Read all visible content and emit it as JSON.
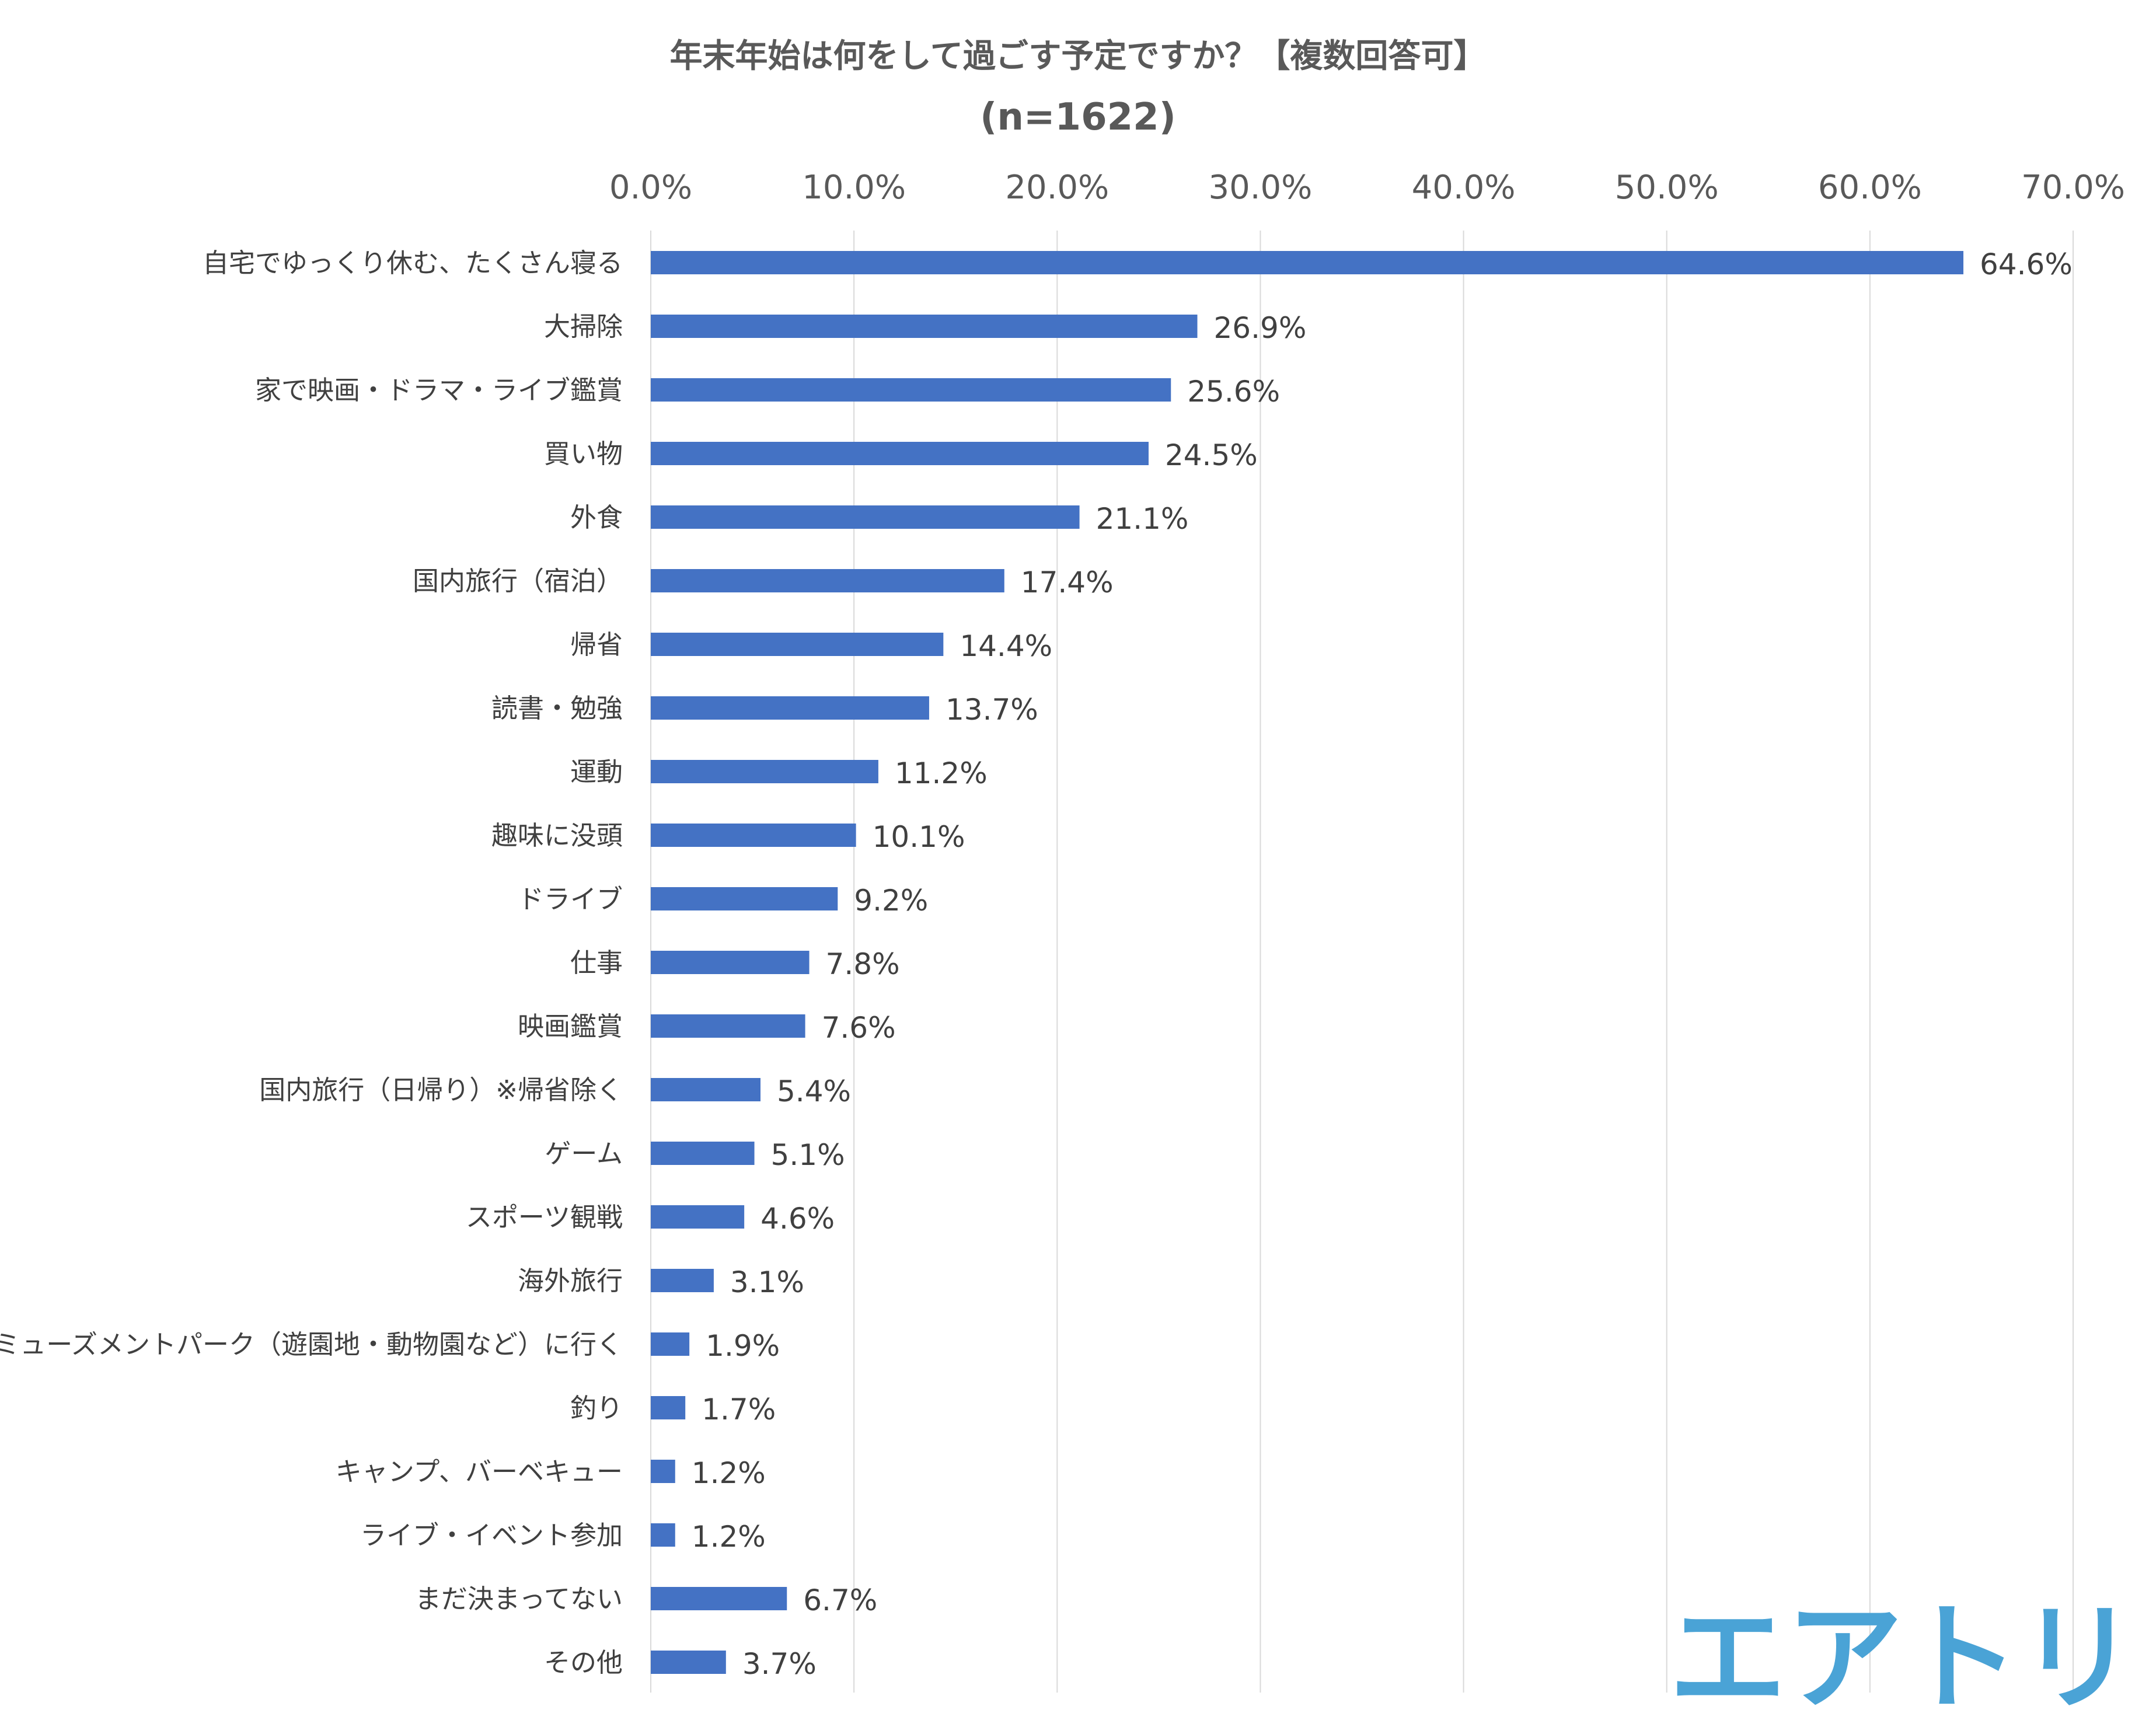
{
  "chart_data": {
    "type": "bar",
    "orientation": "horizontal",
    "title": "年末年始は何をして過ごす予定ですか？【複数回答可】",
    "subtitle": "(n=1622)",
    "xlim": [
      0,
      70
    ],
    "ticks": [
      "0.0%",
      "10.0%",
      "20.0%",
      "30.0%",
      "40.0%",
      "50.0%",
      "60.0%",
      "70.0%"
    ],
    "tick_values": [
      0,
      10,
      20,
      30,
      40,
      50,
      60,
      70
    ],
    "grid": true,
    "axis_position": "top",
    "bar_color": "#4472c4",
    "categories": [
      "自宅でゆっくり休む、たくさん寝る",
      "大掃除",
      "家で映画・ドラマ・ライブ鑑賞",
      "買い物",
      "外食",
      "国内旅行（宿泊）",
      "帰省",
      "読書・勉強",
      "運動",
      "趣味に没頭",
      "ドライブ",
      "仕事",
      "映画鑑賞",
      "国内旅行（日帰り）※帰省除く",
      "ゲーム",
      "スポーツ観戦",
      "海外旅行",
      "アミューズメントパーク（遊園地・動物園など）に行く",
      "釣り",
      "キャンプ、バーベキュー",
      "ライブ・イベント参加",
      "まだ決まってない",
      "その他"
    ],
    "values": [
      64.6,
      26.9,
      25.6,
      24.5,
      21.1,
      17.4,
      14.4,
      13.7,
      11.2,
      10.1,
      9.2,
      7.8,
      7.6,
      5.4,
      5.1,
      4.6,
      3.1,
      1.9,
      1.7,
      1.2,
      1.2,
      6.7,
      3.7
    ],
    "value_labels": [
      "64.6%",
      "26.9%",
      "25.6%",
      "24.5%",
      "21.1%",
      "17.4%",
      "14.4%",
      "13.7%",
      "11.2%",
      "10.1%",
      "9.2%",
      "7.8%",
      "7.6%",
      "5.4%",
      "5.1%",
      "4.6%",
      "3.1%",
      "1.9%",
      "1.7%",
      "1.2%",
      "1.2%",
      "6.7%",
      "3.7%"
    ]
  },
  "logo": {
    "text": "エアトリ",
    "color": "#4aa3d6"
  }
}
